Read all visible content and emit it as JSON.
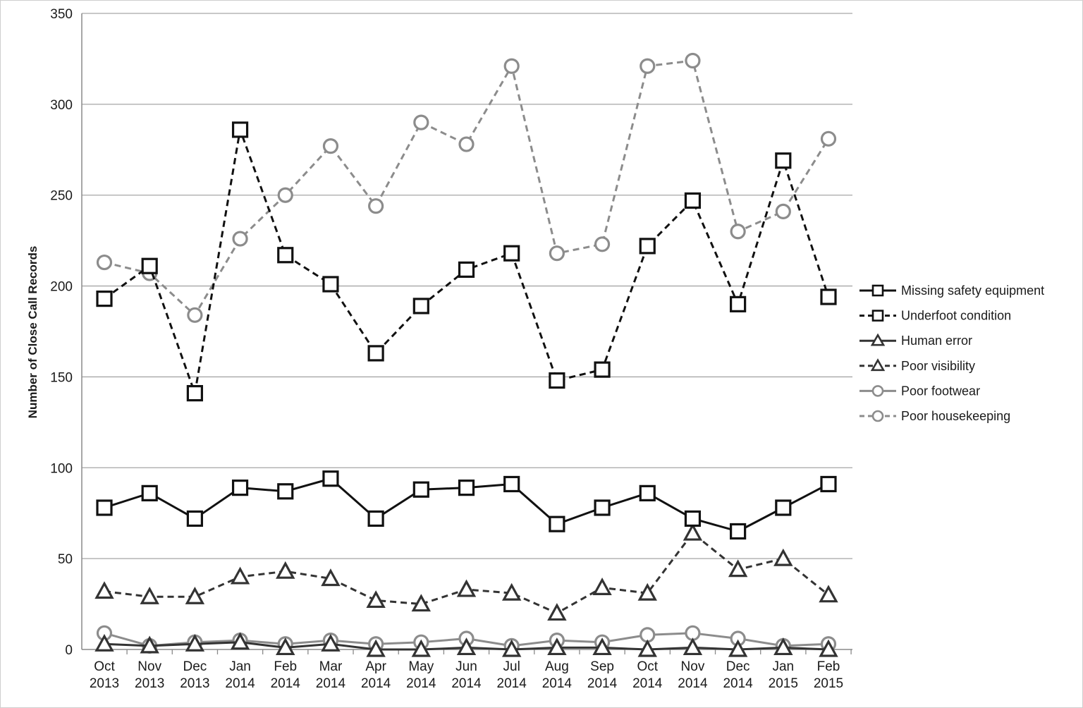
{
  "chart_data": {
    "type": "line",
    "title": "",
    "xlabel": "",
    "ylabel": "Number of Close Call Records",
    "ylim": [
      0,
      350
    ],
    "yticks": [
      0,
      50,
      100,
      150,
      200,
      250,
      300,
      350
    ],
    "grid": "horizontal",
    "legend_position": "right",
    "categories": [
      [
        "Oct",
        "2013"
      ],
      [
        "Nov",
        "2013"
      ],
      [
        "Dec",
        "2013"
      ],
      [
        "Jan",
        "2014"
      ],
      [
        "Feb",
        "2014"
      ],
      [
        "Mar",
        "2014"
      ],
      [
        "Apr",
        "2014"
      ],
      [
        "May",
        "2014"
      ],
      [
        "Jun",
        "2014"
      ],
      [
        "Jul",
        "2014"
      ],
      [
        "Aug",
        "2014"
      ],
      [
        "Sep",
        "2014"
      ],
      [
        "Oct",
        "2014"
      ],
      [
        "Nov",
        "2014"
      ],
      [
        "Dec",
        "2014"
      ],
      [
        "Jan",
        "2015"
      ],
      [
        "Feb",
        "2015"
      ]
    ],
    "series": [
      {
        "name": "Missing safety equipment",
        "marker": "square",
        "dash": "solid",
        "color": "#111111",
        "values": [
          78,
          86,
          72,
          89,
          87,
          94,
          72,
          88,
          89,
          91,
          69,
          78,
          86,
          72,
          65,
          78,
          91
        ]
      },
      {
        "name": "Underfoot condition",
        "marker": "square",
        "dash": "dashed",
        "color": "#111111",
        "values": [
          193,
          211,
          141,
          286,
          217,
          201,
          163,
          189,
          209,
          218,
          148,
          154,
          222,
          247,
          190,
          269,
          194
        ]
      },
      {
        "name": "Human error",
        "marker": "triangle",
        "dash": "solid",
        "color": "#333333",
        "values": [
          3,
          2,
          3,
          4,
          1,
          3,
          0,
          0,
          1,
          0,
          1,
          1,
          0,
          1,
          0,
          1,
          0
        ]
      },
      {
        "name": "Poor visibility",
        "marker": "triangle",
        "dash": "dashed",
        "color": "#333333",
        "values": [
          32,
          29,
          29,
          40,
          43,
          39,
          27,
          25,
          33,
          31,
          20,
          34,
          31,
          64,
          44,
          50,
          30
        ]
      },
      {
        "name": "Poor footwear",
        "marker": "circle",
        "dash": "solid",
        "color": "#8c8c8c",
        "values": [
          9,
          2,
          4,
          5,
          3,
          5,
          3,
          4,
          6,
          2,
          5,
          4,
          8,
          9,
          6,
          2,
          3
        ]
      },
      {
        "name": "Poor housekeeping",
        "marker": "circle",
        "dash": "dashed",
        "color": "#8c8c8c",
        "values": [
          213,
          207,
          184,
          226,
          250,
          277,
          244,
          290,
          278,
          321,
          218,
          223,
          321,
          324,
          230,
          241,
          281
        ]
      }
    ]
  }
}
